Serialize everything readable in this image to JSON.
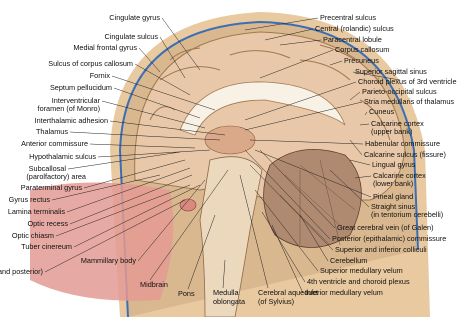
{
  "left_labels": [
    "Cingulate gyrus",
    "Cingulate sulcus",
    "Medial frontal gyrus",
    "Sulcus of corpus callosum",
    "Fornix",
    "Septum pellucidum",
    "Interventricular",
    "foramen (of Monro)",
    "Interthalamic adhesion",
    "Thalamus",
    "Anterior commissure",
    "Hypothalamic sulcus",
    "Subcallosal",
    "(parolfactory) area",
    "Paraterminal gyrus",
    "Gyrus rectus",
    "Lamina terminalis",
    "Optic recess",
    "Optic chiasm",
    "Tuber cinereum",
    "Mammillary body",
    "Pituitary gland (anterior and posterior)"
  ],
  "right_labels": [
    "Precentral sulcus",
    "Central (rolandic) sulcus",
    "Paracentral lobule",
    "Corpus callosum",
    "Precuneus",
    "Superior sagittal sinus",
    "Choroid plexus of 3rd ventricle",
    "Parieto-occipital sulcus",
    "Stria medullaris of thalamus",
    "Cuneus",
    "Calcarine cortex",
    "(upper bank)",
    "Habenular commissure",
    "Calcarine sulcus (fissure)",
    "Lingual gyrus",
    "Calcarine cortex",
    "(lower bank)",
    "Pineal gland",
    "Straight sinus",
    "(in tentorium cerebelli)",
    "Great cerebral vein (of Galen)",
    "Posterior (epithalamic) commissure",
    "Superior and inferior colliculi",
    "Cerebellum",
    "Superior medullary velum",
    "4th ventricle and choroid plexus",
    "Inferior medullary velum"
  ],
  "bottom_labels": [
    "Midbrain",
    "Pons",
    "Medulla",
    "oblongata",
    "Cerebral aqueduct",
    "(of Sylvius)"
  ]
}
